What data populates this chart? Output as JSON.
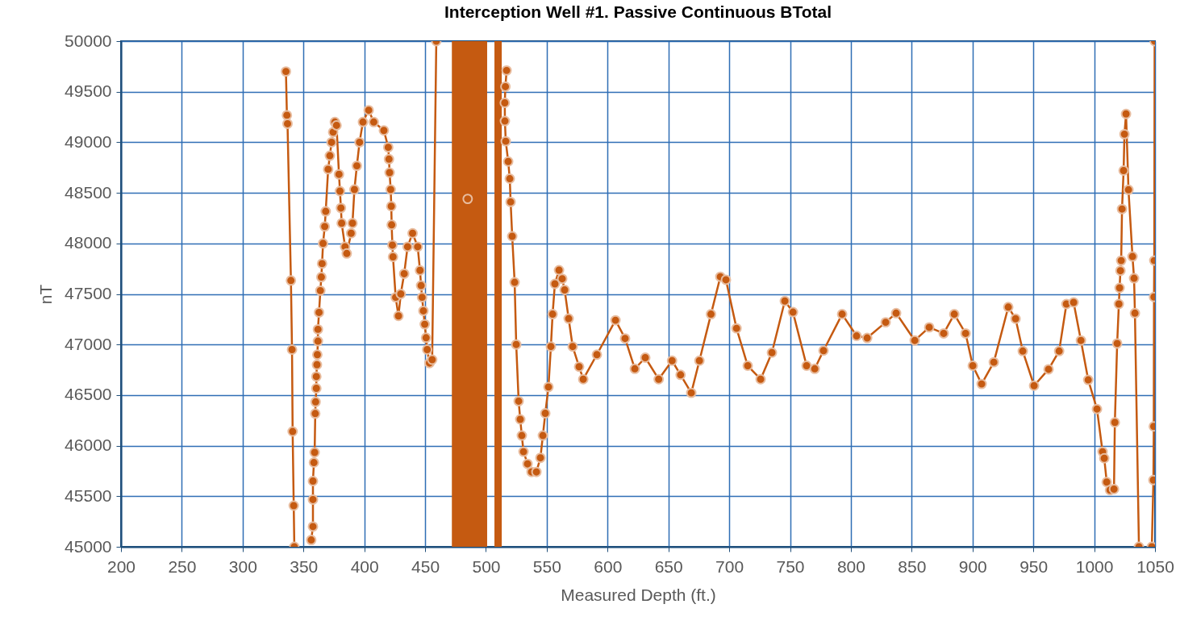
{
  "chart_data": {
    "type": "line",
    "title": "Interception Well #1. Passive Continuous BTotal",
    "xlabel": "Measured Depth (ft.)",
    "ylabel": "nT",
    "x": [
      335.6,
      336.4,
      336.9,
      339.7,
      340.6,
      341.1,
      342,
      342.5,
      null,
      356.4,
      357.8,
      357.8,
      357.8,
      358.6,
      359.2,
      359.7,
      360,
      360.6,
      360.6,
      361.1,
      361.4,
      361.9,
      361.9,
      362.8,
      363.9,
      364.7,
      365.3,
      366.1,
      367.5,
      368.3,
      370.3,
      371.7,
      373.1,
      374.4,
      375.8,
      377.2,
      379.2,
      380,
      380.8,
      381.4,
      384.2,
      385.6,
      389.2,
      390.3,
      391.9,
      393.9,
      396.1,
      398.9,
      403.6,
      407.8,
      416.1,
      419.7,
      420.3,
      420.8,
      421.7,
      422.2,
      422.5,
      423.1,
      423.6,
      425.8,
      428.1,
      430,
      432.8,
      435.6,
      439.7,
      443.9,
      445.8,
      446.7,
      447.5,
      448.6,
      449.7,
      450.8,
      451.7,
      453.6,
      455.8,
      459.2,
      null,
      485,
      null,
      517,
      516,
      515.5,
      515.6,
      516.3,
      518.3,
      519.6,
      520.3,
      521.6,
      523.6,
      524.9,
      526.9,
      528.2,
      529.5,
      530.9,
      534.2,
      537.5,
      541.5,
      544.8,
      546.8,
      548.8,
      551.4,
      553.4,
      554.8,
      556.7,
      560.1,
      562.7,
      564.7,
      568,
      571.3,
      576.6,
      580,
      591.2,
      606.5,
      614.4,
      622.4,
      631,
      642,
      653,
      660,
      668.8,
      675.5,
      685,
      692.7,
      697.3,
      706,
      715.2,
      725.8,
      735.1,
      745.7,
      752.4,
      763.6,
      770.3,
      777.5,
      792.8,
      804.7,
      813.4,
      828.6,
      837.2,
      852.5,
      864.4,
      876.3,
      885,
      894.3,
      900.2,
      907.5,
      917.5,
      929.4,
      935.4,
      941.3,
      950.6,
      962.5,
      971.2,
      977.2,
      983.1,
      989.1,
      995.1,
      1002.3,
      1006.9,
      1008.3,
      1010.3,
      1013,
      1016.3,
      1017,
      1018.9,
      1020.3,
      1020.9,
      1021.6,
      1022.2,
      1022.9,
      1024.2,
      1024.9,
      1026.2,
      1028.2,
      1031.5,
      1032.8,
      1033.5,
      1036.8,
      null,
      1047.4,
      1048.7,
      1049,
      1049.2,
      1049.4,
      1049.7
    ],
    "values": [
      49700,
      49267,
      49183,
      47633,
      46950,
      46140,
      45407,
      45000,
      null,
      45067,
      45200,
      45467,
      45650,
      45833,
      45933,
      46317,
      46433,
      46567,
      46683,
      46800,
      46900,
      47033,
      47150,
      47317,
      47533,
      47667,
      47800,
      48000,
      48167,
      48317,
      48733,
      48867,
      49000,
      49100,
      49200,
      49167,
      48683,
      48517,
      48350,
      48200,
      47967,
      47900,
      48100,
      48200,
      48533,
      48767,
      49000,
      49200,
      49317,
      49200,
      49117,
      48950,
      48833,
      48700,
      48533,
      48367,
      48183,
      47983,
      47867,
      47467,
      47283,
      47500,
      47700,
      47967,
      48100,
      47967,
      47733,
      47583,
      47467,
      47333,
      47200,
      47067,
      46950,
      46817,
      46850,
      50000,
      null,
      48440,
      null,
      49710,
      49550,
      49390,
      49210,
      49010,
      48810,
      48640,
      48410,
      48070,
      47615,
      47000,
      46440,
      46260,
      46100,
      45940,
      45820,
      45740,
      45740,
      45880,
      46100,
      46320,
      46580,
      46980,
      47300,
      47600,
      47735,
      47650,
      47540,
      47256,
      46980,
      46780,
      46657,
      46900,
      47240,
      47060,
      46760,
      46870,
      46657,
      46840,
      46700,
      46522,
      46840,
      47300,
      47670,
      47640,
      47160,
      46790,
      46657,
      46920,
      47430,
      47320,
      46790,
      46760,
      46940,
      47300,
      47085,
      47065,
      47220,
      47310,
      47040,
      47170,
      47110,
      47300,
      47110,
      46790,
      46610,
      46825,
      47370,
      47255,
      46935,
      46593,
      46755,
      46935,
      47400,
      47416,
      47040,
      46650,
      46362,
      45940,
      45875,
      45640,
      45560,
      45570,
      46230,
      47010,
      47400,
      47560,
      47730,
      47830,
      48340,
      48720,
      49080,
      49280,
      48530,
      47870,
      47655,
      47310,
      45000,
      null,
      45000,
      45660,
      46190,
      47470,
      47830,
      50000
    ],
    "color": "#c55a11",
    "marker": "circle",
    "bands": [
      {
        "axis": "x",
        "from": 472,
        "to": 501,
        "color": "#c55a11"
      },
      {
        "axis": "x",
        "from": 507,
        "to": 513,
        "color": "#c55a11"
      }
    ],
    "xlim": [
      200,
      1050
    ],
    "xticks": [
      200,
      250,
      300,
      350,
      400,
      450,
      500,
      550,
      600,
      650,
      700,
      750,
      800,
      850,
      900,
      950,
      1000,
      1050
    ],
    "ylim": [
      45000,
      50000
    ],
    "yticks": [
      45000,
      45500,
      46000,
      46500,
      47000,
      47500,
      48000,
      48500,
      49000,
      49500,
      50000
    ],
    "grid": true
  }
}
